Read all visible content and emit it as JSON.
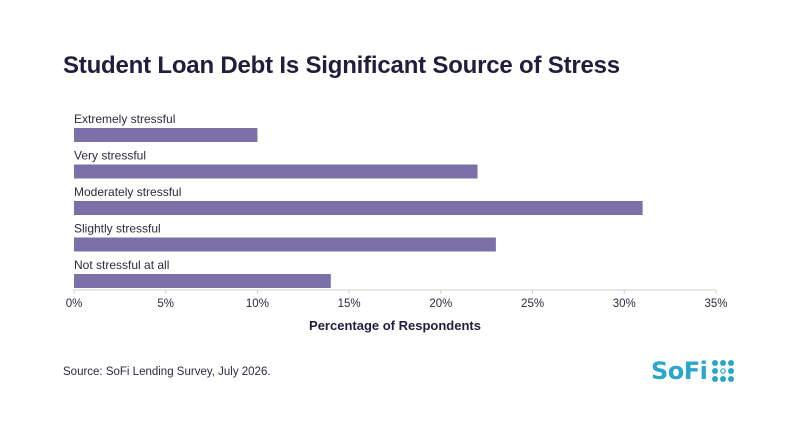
{
  "title": "Student Loan Debt Is Significant Source of Stress",
  "source": "Source: SoFi Lending Survey, July 2026.",
  "logo": {
    "text": "SoFi",
    "icon": "sofi-dots-icon",
    "color": "#2aa7c9"
  },
  "chart_data": {
    "type": "bar",
    "orientation": "horizontal",
    "categories": [
      "Extremely stressful",
      "Very stressful",
      "Moderately stressful",
      "Slightly stressful",
      "Not stressful at all"
    ],
    "values": [
      10,
      22,
      31,
      23,
      14
    ],
    "xlabel": "Percentage of Respondents",
    "ylabel": "",
    "xlim": [
      0,
      35
    ],
    "xticks": [
      "0%",
      "5%",
      "10%",
      "15%",
      "20%",
      "25%",
      "30%",
      "35%"
    ],
    "xtick_values": [
      0,
      5,
      10,
      15,
      20,
      25,
      30,
      35
    ],
    "bar_color": "#7b71a8",
    "grid": false
  }
}
